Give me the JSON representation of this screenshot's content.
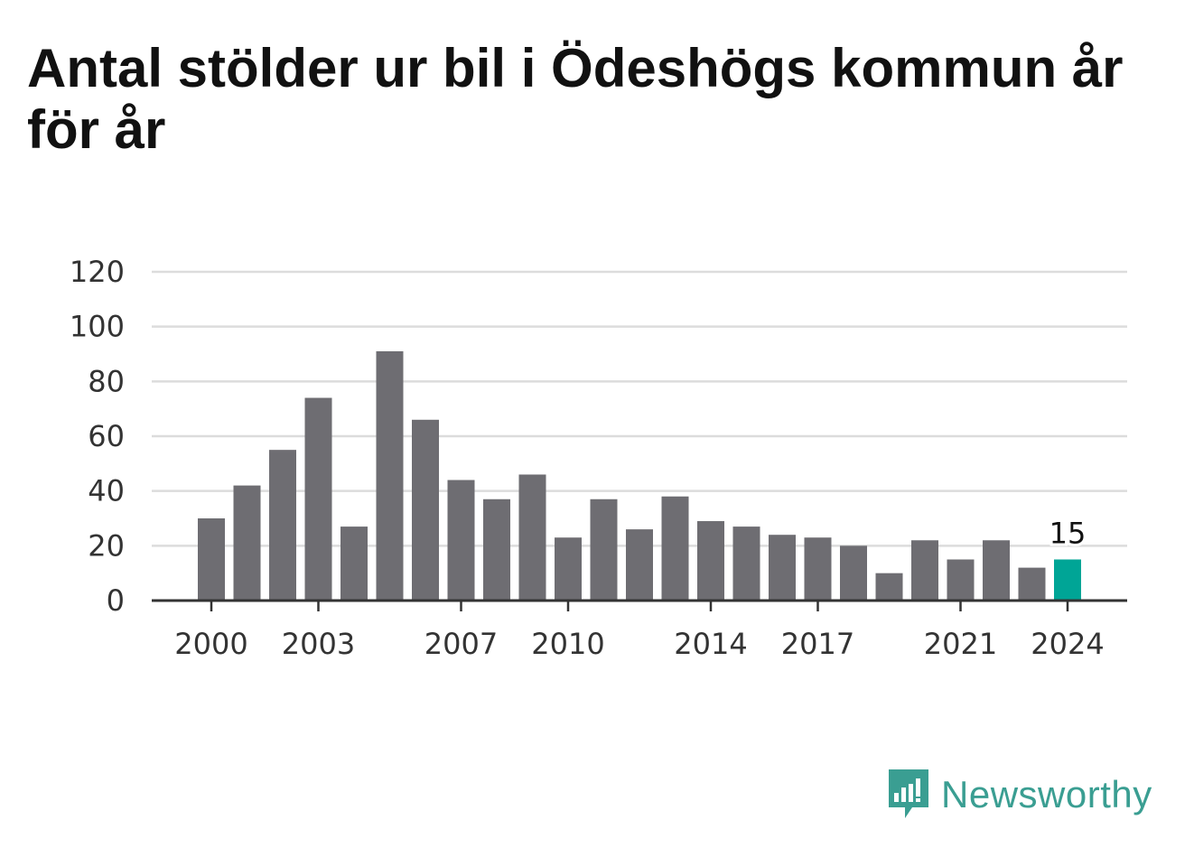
{
  "title": "Antal stölder ur bil i Ödeshögs kommun år för år",
  "brand": {
    "name": "Newsworthy",
    "icon": "newsworthy-logo-icon",
    "color": "#3a9e92"
  },
  "chart_data": {
    "type": "bar",
    "x": [
      2000,
      2001,
      2002,
      2003,
      2004,
      2005,
      2006,
      2007,
      2008,
      2009,
      2010,
      2011,
      2012,
      2013,
      2014,
      2015,
      2016,
      2017,
      2018,
      2019,
      2020,
      2021,
      2022,
      2023,
      2024
    ],
    "values": [
      30,
      42,
      55,
      74,
      27,
      91,
      66,
      44,
      37,
      46,
      23,
      37,
      26,
      38,
      29,
      27,
      24,
      23,
      20,
      10,
      22,
      15,
      22,
      12,
      15
    ],
    "x_ticks": [
      2000,
      2003,
      2007,
      2010,
      2014,
      2017,
      2021,
      2024
    ],
    "y_ticks": [
      0,
      20,
      40,
      60,
      80,
      100,
      120
    ],
    "ylim": [
      0,
      120
    ],
    "grid": true,
    "bar_color": "#6e6d72",
    "highlight_color": "#00a596",
    "highlight_year": 2024,
    "data_labels": [
      {
        "x": 2024,
        "text": "15"
      }
    ]
  }
}
